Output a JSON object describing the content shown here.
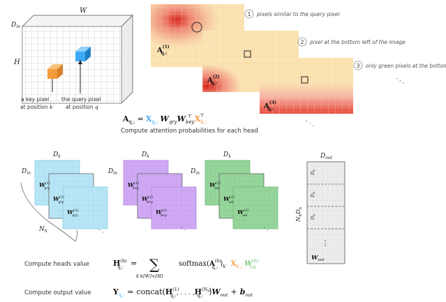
{
  "cube": {
    "width_label": "W",
    "height_label": "H",
    "depth_label": "D",
    "depth_sub": "in",
    "key_label_1": "a key pixel",
    "key_label_2": "at position",
    "key_var": "k",
    "query_label_1": "the query pixel",
    "query_label_2": "at position",
    "query_var": "q"
  },
  "attention_maps": {
    "notes": [
      {
        "num": "1",
        "text": "pixels similar to the query pixel"
      },
      {
        "num": "2",
        "text": "pixel at the bottom left of the image"
      },
      {
        "num": "3",
        "text": "only green pixels at the bottom"
      }
    ],
    "map_label": "A",
    "map_sub": "q,:",
    "heads": [
      "(1)",
      "(2)",
      "(3)"
    ],
    "ellipsis": "· · ·"
  },
  "attention_formula": {
    "lhs": "A",
    "lhs_sub": "q,:",
    "eq": "=",
    "x": "X",
    "x_sub": "q,:",
    "w_qry": "W",
    "w_qry_sub": "qry",
    "w_key": "W",
    "w_key_sub": "key",
    "t_sup": "⊤",
    "x2": "X",
    "x2_sub": "k,:",
    "caption": "Compute attention probabilities for each head"
  },
  "weight_groups": {
    "dim_top": "D",
    "dim_top_sub": "k",
    "dim_side": "D",
    "dim_side_sub": "in",
    "heads_label": "N",
    "heads_sub": "h",
    "weight_letter": "W",
    "groups": [
      {
        "name": "qry",
        "sub": "qry"
      },
      {
        "name": "key",
        "sub": "key"
      },
      {
        "name": "val",
        "sub": "val"
      }
    ],
    "head_sups": [
      "(1)",
      "(2)",
      "(3)"
    ],
    "ellipsis": "· ·"
  },
  "output_matrix": {
    "top_label": "D",
    "top_sub": "out",
    "side_label": "N",
    "side_sub": "h",
    "side_label2": "D",
    "side_sub2": "h",
    "row_label": "D",
    "row_sub": "h",
    "bottom_label": "W",
    "bottom_sub": "out",
    "dots": "⋮"
  },
  "formulas": [
    {
      "label": "Compute heads value",
      "lhs": "H",
      "lhs_sup": "(h)",
      "lhs_sub": "q,:",
      "eq": "=",
      "sum": "∑",
      "sum_sub": "k′∈[W]×[H]",
      "softmax": "softmax",
      "a": "A",
      "a_sub": "q,:",
      "a_sup": "(h)",
      "a_tail_sub": "k′",
      "x": "X",
      "x_sub": "k′,:",
      "w": "W",
      "w_sub": "val",
      "w_sup": "(h)"
    },
    {
      "label": "Compute output value",
      "lhs": "Y",
      "lhs_sub": "q,:",
      "eq": "=",
      "concat": "concat",
      "h1": "H",
      "h1_sup": "(1)",
      "h1_sub": "q,:",
      "dots": ", . . . ,",
      "hn": "H",
      "hn_sup": "(N",
      "hn_sup_sub": "h",
      "hn_sup_close": ")",
      "hn_sub": "q,:",
      "w": "W",
      "w_sub": "out",
      "plus": "+",
      "b": "b",
      "b_sub": "out"
    }
  ],
  "colors": {
    "blue": "#3fa9f5",
    "orange": "#f39c3c",
    "green": "#7bc87b",
    "purple": "#c9a3f0",
    "cyan": "#b8e6f7",
    "lightgreen": "#9fdba3",
    "map_bg": "#fbe3b4",
    "red": "#e8453c"
  }
}
